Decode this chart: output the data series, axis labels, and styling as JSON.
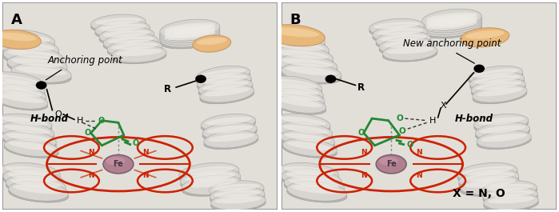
{
  "fig_width": 6.99,
  "fig_height": 2.65,
  "dpi": 100,
  "helix_base": "#d8d5d0",
  "helix_shadow": "#b8b5b0",
  "helix_highlight": "#eeebe6",
  "helix_orange": "#e8b87a",
  "helix_orange_edge": "#c8986a",
  "panel_bg": "#e2dfd9",
  "border_color": "#888888",
  "porphyrin_color": "#cc2200",
  "fe_color_center": "#b08090",
  "fe_color_edge": "#806070",
  "ligand_green": "#228833",
  "text_black": "#111111",
  "dashed_color": "#333333",
  "panel_A_label": "A",
  "panel_B_label": "B",
  "anchor_label_A": "Anchoring point",
  "anchor_label_B": "New anchoring point",
  "hbond_label": "H-bond",
  "x_equals": "X = N, O"
}
